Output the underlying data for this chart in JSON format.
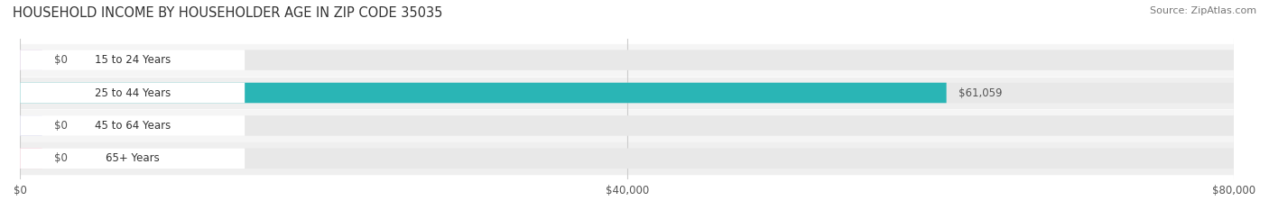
{
  "title": "HOUSEHOLD INCOME BY HOUSEHOLDER AGE IN ZIP CODE 35035",
  "source": "Source: ZipAtlas.com",
  "categories": [
    "15 to 24 Years",
    "25 to 44 Years",
    "45 to 64 Years",
    "65+ Years"
  ],
  "values": [
    0,
    61059,
    0,
    0
  ],
  "bar_colors": [
    "#c9a8d4",
    "#2ab5b5",
    "#a8a8d4",
    "#f4a8c0"
  ],
  "bar_bg_color": "#f0f0f0",
  "row_bg_colors": [
    "#f8f8f8",
    "#f8f8f8",
    "#f8f8f8",
    "#f8f8f8"
  ],
  "label_colors": [
    "#c9a8d4",
    "#2ab5b5",
    "#a8a8d4",
    "#f4a8c0"
  ],
  "xlim": [
    0,
    80000
  ],
  "xticks": [
    0,
    40000,
    80000
  ],
  "xtick_labels": [
    "$0",
    "$40,000",
    "$80,000"
  ],
  "value_label_color": "#555555",
  "title_color": "#333333",
  "background_color": "#ffffff",
  "figsize": [
    14.06,
    2.33
  ],
  "dpi": 100
}
